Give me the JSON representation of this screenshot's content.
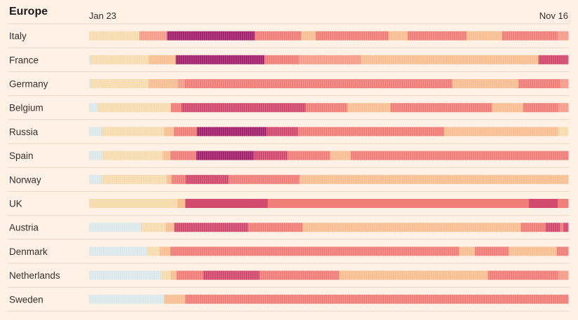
{
  "chart_data": {
    "type": "heatmap",
    "title": "Europe",
    "x_start_label": "Jan 23",
    "x_end_label": "Nov 16",
    "x_range": [
      "Jan 23",
      "Nov 16"
    ],
    "value_scale": "stringency level 0-6 (0 = lightest blue, 6 = darkest purple)",
    "level_colors": [
      "#dbe8ec",
      "#f7dcb0",
      "#f7bf92",
      "#f59c8a",
      "#f07f79",
      "#d24b6e",
      "#a3226e"
    ],
    "rows": [
      {
        "country": "Italy",
        "segments": [
          [
            1,
            0.105
          ],
          [
            3,
            0.058
          ],
          [
            6,
            0.183
          ],
          [
            4,
            0.097
          ],
          [
            2,
            0.03
          ],
          [
            4,
            0.152
          ],
          [
            2,
            0.04
          ],
          [
            4,
            0.123
          ],
          [
            2,
            0.074
          ],
          [
            4,
            0.116
          ],
          [
            3,
            0.022
          ]
        ]
      },
      {
        "country": "France",
        "segments": [
          [
            0,
            0.003
          ],
          [
            1,
            0.121
          ],
          [
            2,
            0.057
          ],
          [
            6,
            0.185
          ],
          [
            4,
            0.072
          ],
          [
            3,
            0.129
          ],
          [
            2,
            0.371
          ],
          [
            5,
            0.062
          ]
        ]
      },
      {
        "country": "Germany",
        "segments": [
          [
            0,
            0.003
          ],
          [
            1,
            0.121
          ],
          [
            2,
            0.061
          ],
          [
            3,
            0.015
          ],
          [
            4,
            0.143
          ],
          [
            4,
            0.415
          ],
          [
            2,
            0.138
          ],
          [
            4,
            0.087
          ],
          [
            3,
            0.017
          ]
        ]
      },
      {
        "country": "Belgium",
        "segments": [
          [
            0,
            0.017
          ],
          [
            1,
            0.154
          ],
          [
            4,
            0.022
          ],
          [
            5,
            0.259
          ],
          [
            4,
            0.087
          ],
          [
            2,
            0.09
          ],
          [
            4,
            0.212
          ],
          [
            2,
            0.065
          ],
          [
            4,
            0.073
          ],
          [
            3,
            0.021
          ]
        ]
      },
      {
        "country": "Russia",
        "segments": [
          [
            0,
            0.026
          ],
          [
            1,
            0.131
          ],
          [
            2,
            0.02
          ],
          [
            4,
            0.048
          ],
          [
            6,
            0.145
          ],
          [
            5,
            0.066
          ],
          [
            4,
            0.305
          ],
          [
            2,
            0.238
          ],
          [
            1,
            0.021
          ]
        ]
      },
      {
        "country": "Spain",
        "segments": [
          [
            0,
            0.028
          ],
          [
            1,
            0.126
          ],
          [
            2,
            0.016
          ],
          [
            4,
            0.054
          ],
          [
            6,
            0.119
          ],
          [
            5,
            0.071
          ],
          [
            4,
            0.089
          ],
          [
            2,
            0.043
          ],
          [
            4,
            0.454
          ]
        ]
      },
      {
        "country": "Norway",
        "segments": [
          [
            0,
            0.026
          ],
          [
            1,
            0.136
          ],
          [
            2,
            0.01
          ],
          [
            4,
            0.03
          ],
          [
            5,
            0.089
          ],
          [
            4,
            0.148
          ],
          [
            2,
            0.561
          ]
        ]
      },
      {
        "country": "UK",
        "segments": [
          [
            1,
            0.185
          ],
          [
            2,
            0.016
          ],
          [
            5,
            0.172
          ],
          [
            4,
            0.545
          ],
          [
            5,
            0.06
          ],
          [
            4,
            0.022
          ]
        ]
      },
      {
        "country": "Austria",
        "segments": [
          [
            0,
            0.108
          ],
          [
            1,
            0.052
          ],
          [
            2,
            0.018
          ],
          [
            5,
            0.154
          ],
          [
            4,
            0.114
          ],
          [
            2,
            0.455
          ],
          [
            4,
            0.052
          ],
          [
            5,
            0.03
          ],
          [
            4,
            0.007
          ],
          [
            5,
            0.01
          ]
        ]
      },
      {
        "country": "Denmark",
        "segments": [
          [
            0,
            0.121
          ],
          [
            1,
            0.026
          ],
          [
            2,
            0.023
          ],
          [
            4,
            0.602
          ],
          [
            2,
            0.033
          ],
          [
            4,
            0.071
          ],
          [
            2,
            0.1
          ],
          [
            4,
            0.024
          ]
        ]
      },
      {
        "country": "Netherlands",
        "segments": [
          [
            0,
            0.146
          ],
          [
            1,
            0.02
          ],
          [
            2,
            0.012
          ],
          [
            4,
            0.054
          ],
          [
            5,
            0.114
          ],
          [
            4,
            0.162
          ],
          [
            2,
            0.302
          ],
          [
            4,
            0.142
          ],
          [
            3,
            0.021
          ]
        ]
      },
      {
        "country": "Sweden",
        "segments": [
          [
            0,
            0.157
          ],
          [
            2,
            0.044
          ],
          [
            4,
            0.799
          ]
        ]
      }
    ]
  }
}
